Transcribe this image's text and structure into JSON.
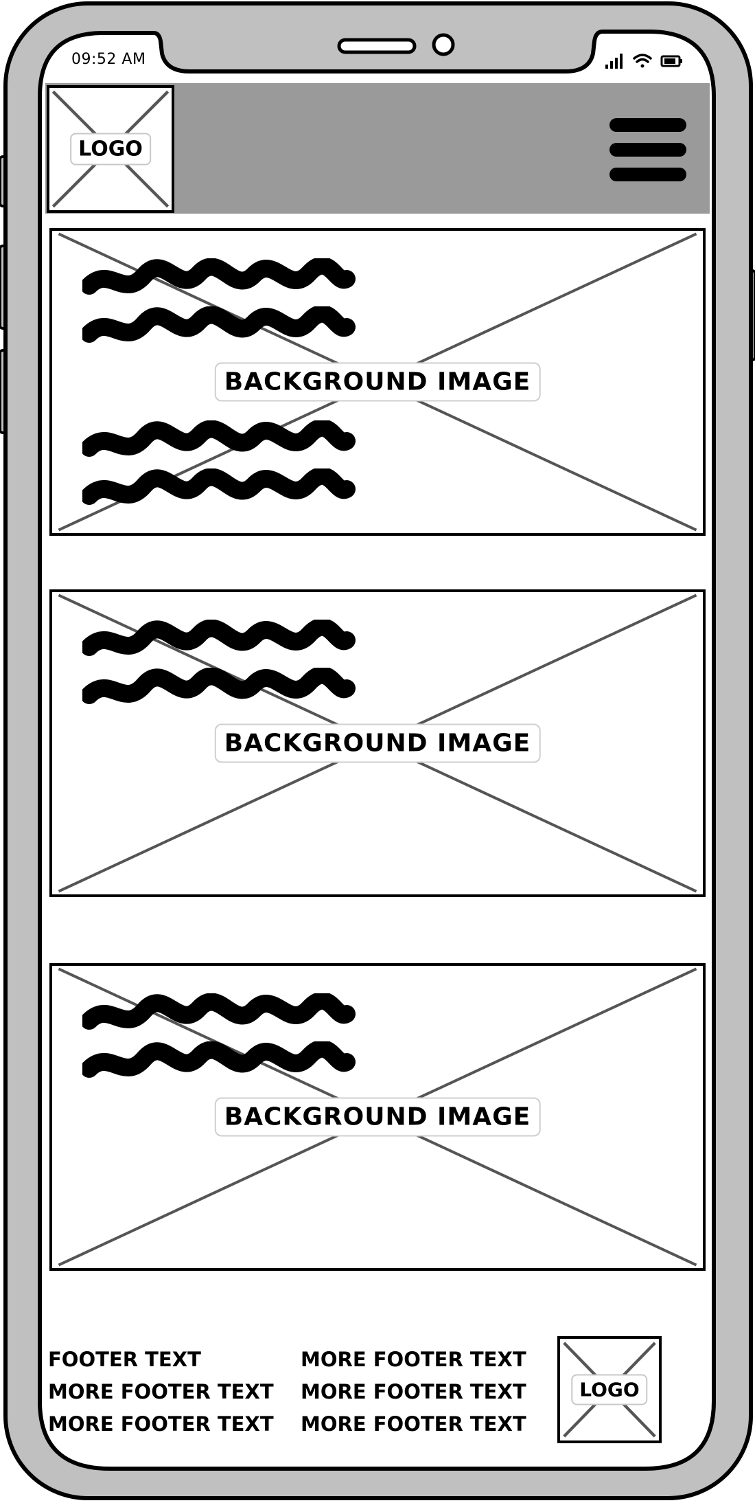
{
  "status_bar": {
    "time": "09:52 AM",
    "icons": [
      "signal-bars-icon",
      "wifi-icon",
      "battery-icon"
    ]
  },
  "header": {
    "logo_label": "LOGO",
    "menu_icon": "hamburger-menu-icon",
    "bar_color": "#9a9a9a"
  },
  "cards": [
    {
      "label": "BACKGROUND IMAGE",
      "scribble_lines": 4
    },
    {
      "label": "BACKGROUND IMAGE",
      "scribble_lines": 2
    },
    {
      "label": "BACKGROUND IMAGE",
      "scribble_lines": 2
    }
  ],
  "footer": {
    "column1": [
      "FOOTER TEXT",
      "MORE FOOTER TEXT",
      "MORE FOOTER TEXT"
    ],
    "column2": [
      "MORE FOOTER TEXT",
      "MORE FOOTER TEXT",
      "MORE FOOTER TEXT"
    ],
    "logo_label": "LOGO"
  },
  "colors": {
    "device_frame": "#c0c0c0",
    "outline": "#000000",
    "placeholder_line": "#555555"
  }
}
